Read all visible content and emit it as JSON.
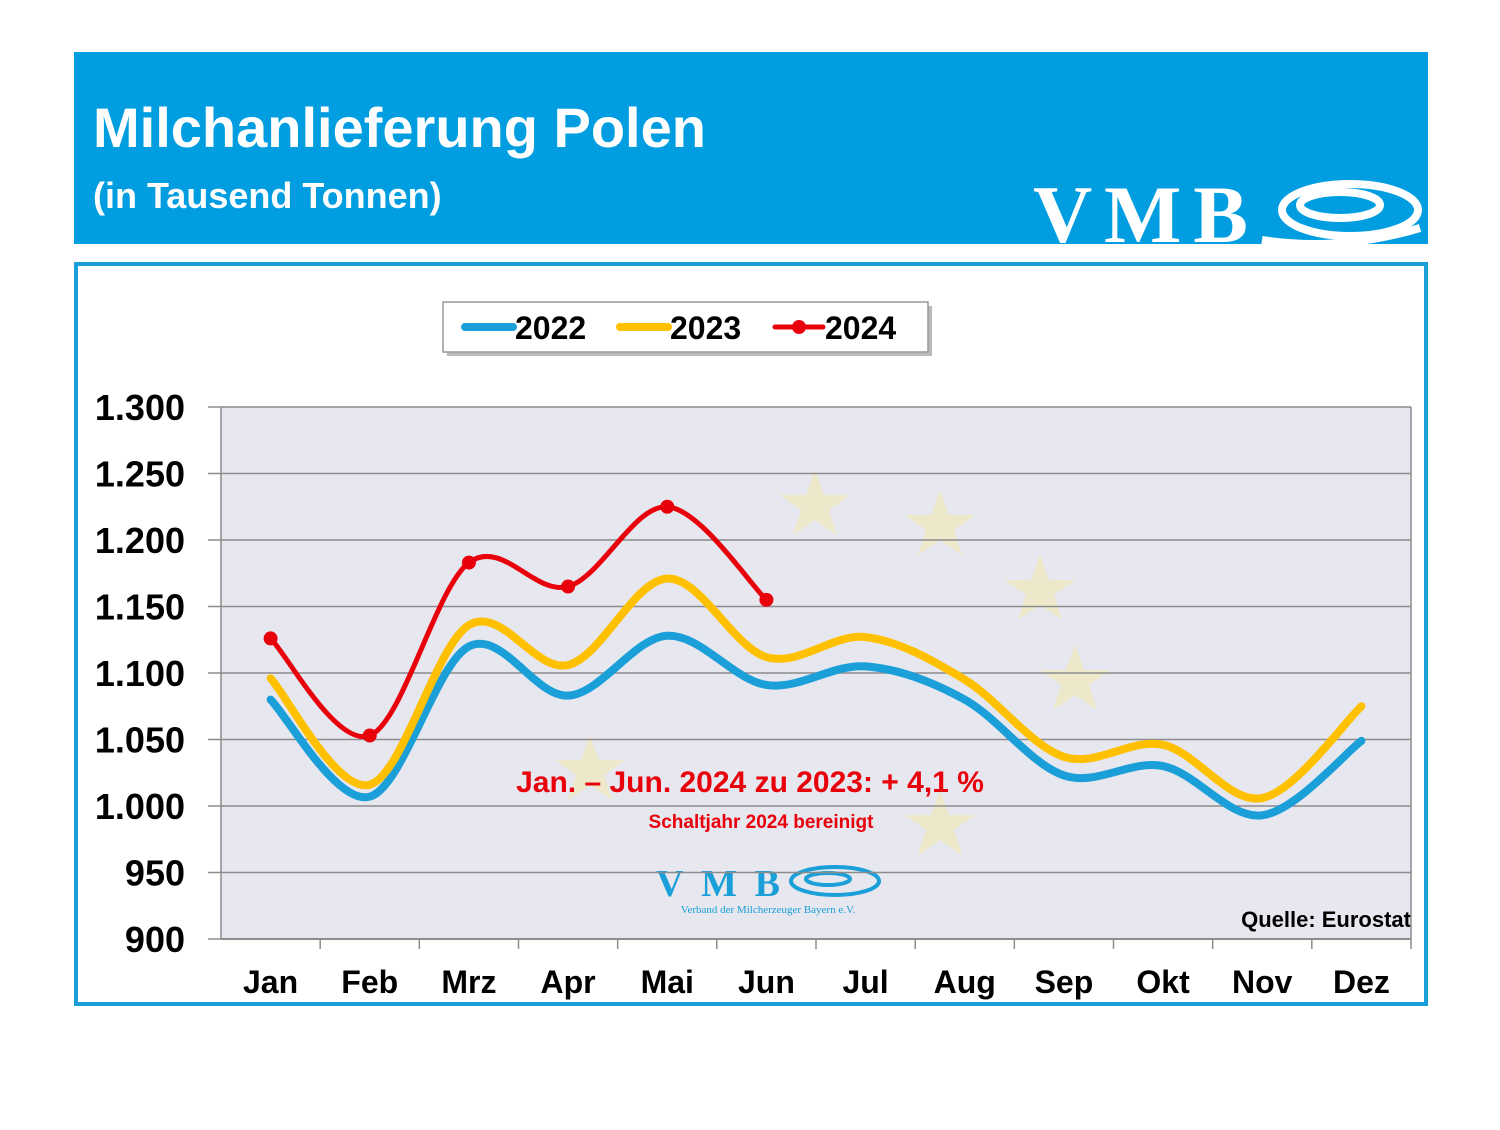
{
  "header": {
    "title": "Milchanlieferung Polen",
    "subtitle": "(in Tausend Tonnen)",
    "logo_text": "VMB"
  },
  "chart_data": {
    "type": "line",
    "categories": [
      "Jan",
      "Feb",
      "Mrz",
      "Apr",
      "Mai",
      "Jun",
      "Jul",
      "Aug",
      "Sep",
      "Okt",
      "Nov",
      "Dez"
    ],
    "series": [
      {
        "name": "2022",
        "color": "#1a9fd9",
        "values": [
          1080,
          1007,
          1120,
          1083,
          1128,
          1091,
          1105,
          1080,
          1023,
          1030,
          993,
          1049
        ]
      },
      {
        "name": "2023",
        "color": "#ffc000",
        "values": [
          1096,
          1016,
          1136,
          1106,
          1171,
          1112,
          1127,
          1095,
          1037,
          1046,
          1006,
          1075
        ]
      },
      {
        "name": "2024",
        "color": "#e8000b",
        "markers": true,
        "values": [
          1126,
          1053,
          1183,
          1165,
          1225,
          1155,
          null,
          null,
          null,
          null,
          null,
          null
        ]
      }
    ],
    "ylim": [
      900,
      1300
    ],
    "yticks": [
      900,
      950,
      {
        "value": 1000,
        "label": "1.000"
      },
      {
        "value": 1050,
        "label": "1.050"
      },
      {
        "value": 1100,
        "label": "1.100"
      },
      {
        "value": 1150,
        "label": "1.150"
      },
      {
        "value": 1200,
        "label": "1.200"
      },
      {
        "value": 1250,
        "label": "1.250"
      },
      {
        "value": 1300,
        "label": "1.300"
      }
    ],
    "grid": true,
    "legend": "top",
    "annotations": [
      "Jan. – Jun. 2024 zu 2023: + 4,1 %",
      "Schaltjahr 2024 bereinigt"
    ],
    "source": "Quelle: Eurostat",
    "logo_text": "VMB",
    "logo_subtitle": "Verband der Milcherzeuger Bayern e.V."
  }
}
